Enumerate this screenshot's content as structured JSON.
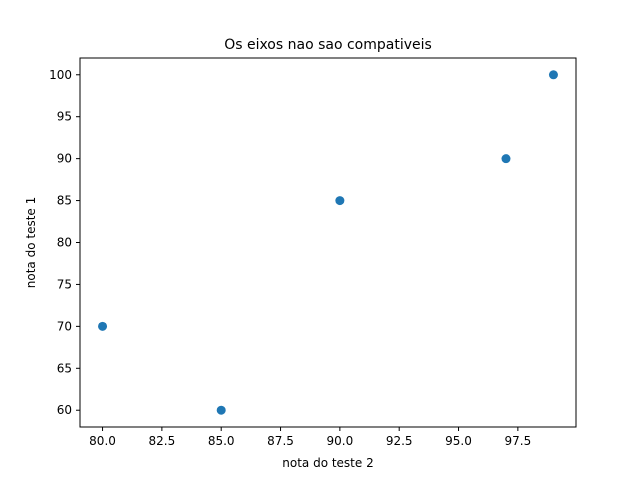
{
  "chart_data": {
    "type": "scatter",
    "title": "Os eixos nao sao compativeis",
    "xlabel": "nota do teste 2",
    "ylabel": "nota do teste 1",
    "x": [
      80,
      85,
      90,
      97,
      99
    ],
    "y": [
      70,
      60,
      85,
      90,
      100
    ],
    "xlim": [
      79.05,
      99.95
    ],
    "ylim": [
      58,
      102
    ],
    "xticks": [
      "80.0",
      "82.5",
      "85.0",
      "87.5",
      "90.0",
      "92.5",
      "95.0",
      "97.5"
    ],
    "yticks": [
      "60",
      "65",
      "70",
      "75",
      "80",
      "85",
      "90",
      "95",
      "100"
    ],
    "marker_color": "#1f77b4",
    "grid": false,
    "legend": "none"
  }
}
